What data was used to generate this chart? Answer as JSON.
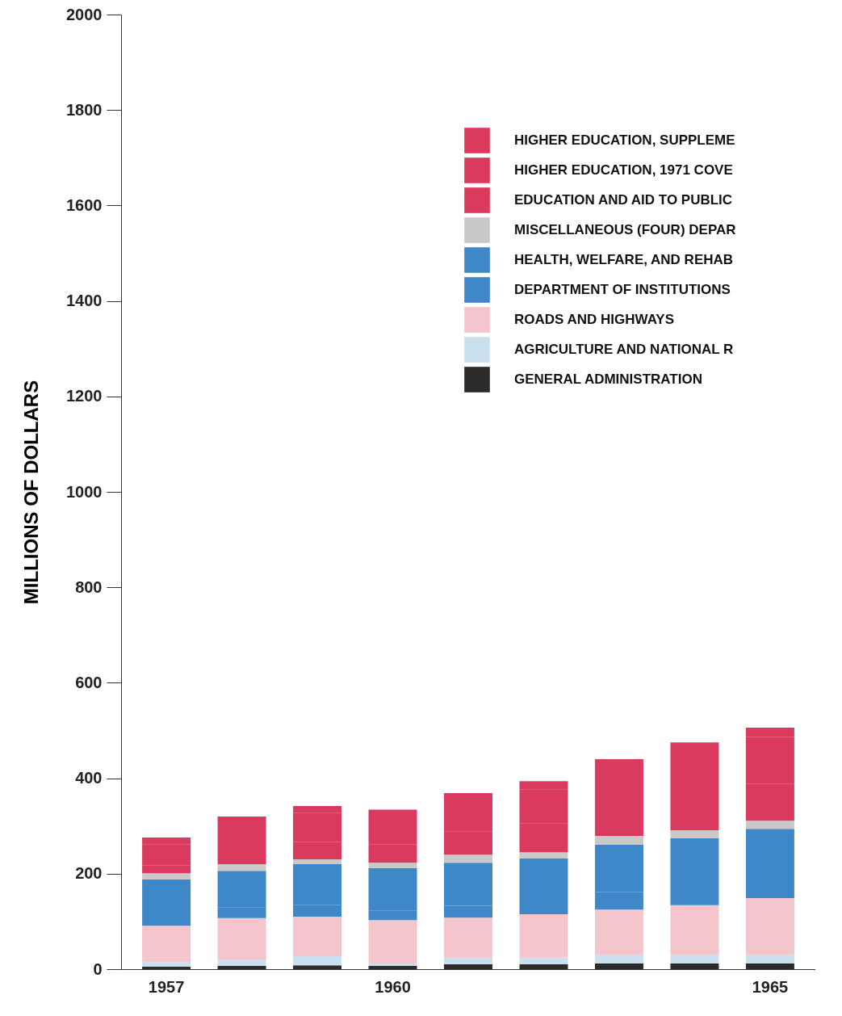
{
  "chart_data": {
    "type": "bar",
    "stacked": true,
    "ylabel": "MILLIONS OF DOLLARS",
    "categories": [
      "1957",
      null,
      null,
      "1960",
      null,
      null,
      null,
      null,
      "1965"
    ],
    "ylim": [
      0,
      2000
    ],
    "yticks": [
      0,
      200,
      400,
      600,
      800,
      1000,
      1200,
      1400,
      1600,
      1800,
      2000
    ],
    "grid": false,
    "legend": "top right",
    "series": [
      {
        "name": "GENERAL ADMINISTRATION",
        "color": "#2d2a2a",
        "values": [
          5,
          7,
          8,
          7,
          10,
          10,
          12,
          12,
          12
        ]
      },
      {
        "name": "AGRICULTURE AND NATIONAL R",
        "color": "#c9e0ef",
        "values": [
          10,
          13,
          19,
          5,
          14,
          14,
          18,
          18,
          18
        ]
      },
      {
        "name": "ROADS AND HIGHWAYS",
        "color": "#f4c6cc",
        "values": [
          76,
          87,
          83,
          91,
          84,
          91,
          95,
          104,
          119
        ]
      },
      {
        "name": "DEPARTMENT OF INSTITUTIONS",
        "color": "#3e87c8",
        "values": [
          19,
          23,
          25,
          20,
          25,
          27,
          36,
          35,
          44
        ]
      },
      {
        "name": "HEALTH, WELFARE, AND REHAB",
        "color": "#3e87c8",
        "values": [
          78,
          76,
          85,
          89,
          90,
          90,
          100,
          105,
          101
        ]
      },
      {
        "name": "MISCELLANEOUS (FOUR) DEPAR",
        "color": "#c9c9c9",
        "values": [
          13,
          14,
          10,
          11,
          17,
          13,
          18,
          17,
          17
        ]
      },
      {
        "name": "EDUCATION AND AID TO PUBLIC",
        "color": "#d93a5e",
        "values": [
          17,
          32,
          36,
          38,
          49,
          60,
          66,
          66,
          77
        ]
      },
      {
        "name": "HIGHER EDUCATION, 1971 COVE",
        "color": "#d93a5e",
        "values": [
          44,
          51,
          62,
          57,
          63,
          72,
          78,
          98,
          98
        ]
      },
      {
        "name": "HIGHER EDUCATION, SUPPLEME",
        "color": "#d93a5e",
        "values": [
          14,
          17,
          14,
          16,
          17,
          17,
          17,
          20,
          20
        ]
      }
    ]
  }
}
